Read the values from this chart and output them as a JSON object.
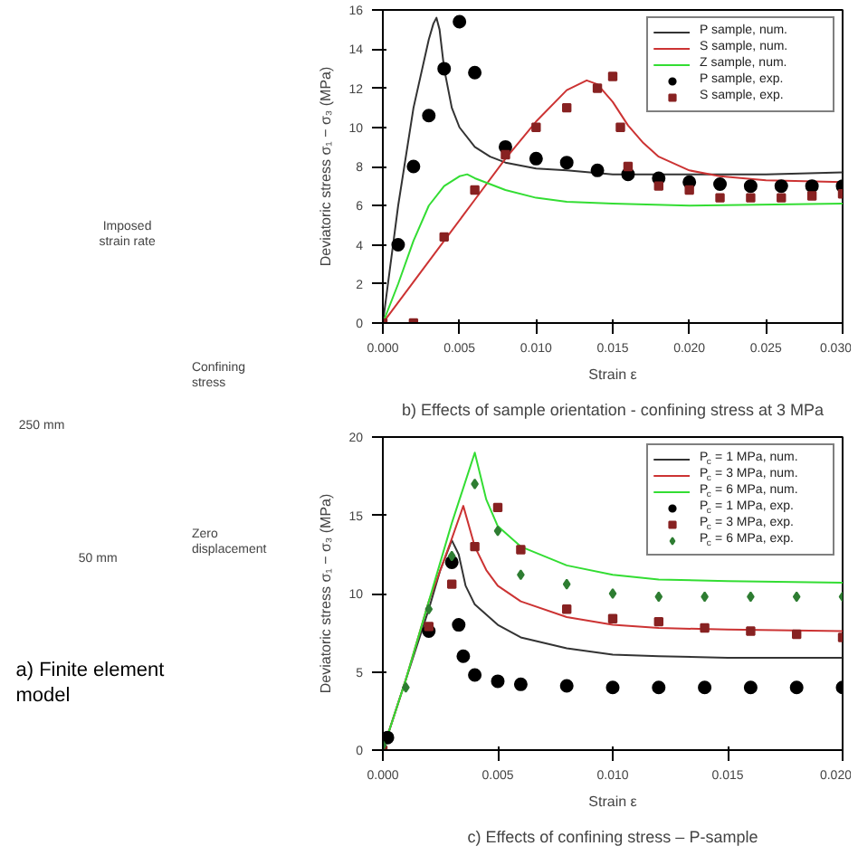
{
  "chart_data": [
    {
      "type": "other",
      "title": "a) Finite element model",
      "annotations": [
        "Imposed strain rate",
        "Confining stress",
        "250 mm",
        "50 mm",
        "Zero displacement"
      ]
    },
    {
      "type": "line",
      "title": "b) Effects of sample orientation - confining stress at 3 MPa",
      "xlabel": "Strain ε",
      "ylabel": "Deviatoric stress σ₁ − σ₃ (MPa)",
      "xlim": [
        0,
        0.03
      ],
      "ylim": [
        0,
        16
      ],
      "xticks": [
        {
          "value": 0,
          "label": "0.000"
        },
        {
          "value": 0.005,
          "label": "0.005"
        },
        {
          "value": 0.01,
          "label": "0.010"
        },
        {
          "value": 0.015,
          "label": "0.015"
        },
        {
          "value": 0.02,
          "label": "0.020"
        },
        {
          "value": 0.025,
          "label": "0.025"
        },
        {
          "value": 0.03,
          "label": "0.030"
        }
      ],
      "yticks": [
        0,
        2,
        4,
        6,
        8,
        10,
        12,
        14,
        16
      ],
      "grid": false,
      "legend": "top right",
      "series": [
        {
          "name": "P sample, num.",
          "type": "line",
          "color": "#333333",
          "x": [
            0,
            0.001,
            0.002,
            0.003,
            0.0033,
            0.0035,
            0.0037,
            0.004,
            0.0045,
            0.005,
            0.006,
            0.007,
            0.008,
            0.01,
            0.012,
            0.015,
            0.02,
            0.025,
            0.03
          ],
          "values": [
            0,
            6,
            11,
            14.5,
            15.3,
            15.6,
            15,
            13,
            11,
            10,
            9,
            8.5,
            8.2,
            7.9,
            7.8,
            7.6,
            7.6,
            7.6,
            7.7
          ]
        },
        {
          "name": "S sample, num.",
          "type": "line",
          "color": "#cc3333",
          "x": [
            0,
            0.004,
            0.006,
            0.008,
            0.01,
            0.012,
            0.0133,
            0.014,
            0.015,
            0.016,
            0.017,
            0.018,
            0.02,
            0.022,
            0.025,
            0.03
          ],
          "values": [
            0,
            4.2,
            6.3,
            8.4,
            10.3,
            11.9,
            12.4,
            12.2,
            11.3,
            10.1,
            9.2,
            8.5,
            7.8,
            7.5,
            7.3,
            7.2
          ]
        },
        {
          "name": "Z sample, num.",
          "type": "line",
          "color": "#33dd33",
          "x": [
            0,
            0.001,
            0.002,
            0.003,
            0.004,
            0.005,
            0.0055,
            0.006,
            0.007,
            0.008,
            0.01,
            0.012,
            0.015,
            0.02,
            0.03
          ],
          "values": [
            0,
            2,
            4.2,
            6,
            7,
            7.5,
            7.6,
            7.4,
            7.1,
            6.8,
            6.4,
            6.2,
            6.1,
            6,
            6.1
          ]
        },
        {
          "name": "P sample, exp.",
          "type": "scatter",
          "marker": "circle",
          "color": "#000000",
          "x": [
            0.001,
            0.002,
            0.003,
            0.004,
            0.005,
            0.006,
            0.008,
            0.01,
            0.012,
            0.014,
            0.016,
            0.018,
            0.02,
            0.022,
            0.024,
            0.026,
            0.028,
            0.03
          ],
          "values": [
            4,
            8,
            10.6,
            13,
            15.4,
            12.8,
            9,
            8.4,
            8.2,
            7.8,
            7.6,
            7.4,
            7.2,
            7.1,
            7,
            7,
            7,
            7
          ]
        },
        {
          "name": "S sample, exp.",
          "type": "scatter",
          "marker": "square",
          "color": "#882222",
          "x": [
            0,
            0.002,
            0.004,
            0.006,
            0.008,
            0.01,
            0.012,
            0.014,
            0.015,
            0.0155,
            0.016,
            0.018,
            0.02,
            0.022,
            0.024,
            0.026,
            0.028,
            0.03
          ],
          "values": [
            0,
            0,
            4.4,
            6.8,
            8.6,
            10,
            11,
            12,
            12.6,
            10,
            8,
            7,
            6.8,
            6.4,
            6.4,
            6.4,
            6.5,
            6.6
          ]
        }
      ]
    },
    {
      "type": "line",
      "title": "c) Effects of confining stress – P-sample",
      "xlabel": "Strain ε",
      "ylabel": "Deviatoric stress σ₁ − σ₃ (MPa)",
      "xlim": [
        0,
        0.02
      ],
      "ylim": [
        0,
        20
      ],
      "xticks": [
        {
          "value": 0,
          "label": "0.000"
        },
        {
          "value": 0.005,
          "label": "0.005"
        },
        {
          "value": 0.01,
          "label": "0.010"
        },
        {
          "value": 0.015,
          "label": "0.015"
        },
        {
          "value": 0.02,
          "label": "0.020"
        }
      ],
      "yticks": [
        0,
        5,
        10,
        15,
        20
      ],
      "grid": false,
      "legend": "top right",
      "series": [
        {
          "name": "P$_{c}$ = 1 MPa, num.",
          "type": "line",
          "color": "#333333",
          "x": [
            0,
            0.001,
            0.002,
            0.0025,
            0.003,
            0.0033,
            0.0036,
            0.004,
            0.005,
            0.006,
            0.008,
            0.01,
            0.012,
            0.015,
            0.02
          ],
          "values": [
            0,
            4.5,
            9,
            11.5,
            13.4,
            12.5,
            10.5,
            9.3,
            8,
            7.2,
            6.5,
            6.1,
            6,
            5.9,
            5.9
          ]
        },
        {
          "name": "P$_{c}$ = 3 MPa, num.",
          "type": "line",
          "color": "#cc3333",
          "x": [
            0,
            0.001,
            0.002,
            0.003,
            0.0035,
            0.004,
            0.0045,
            0.005,
            0.006,
            0.008,
            0.01,
            0.012,
            0.015,
            0.02
          ],
          "values": [
            0,
            4.5,
            9.5,
            13.5,
            15.6,
            13,
            11.5,
            10.5,
            9.5,
            8.5,
            8,
            7.8,
            7.7,
            7.6
          ]
        },
        {
          "name": "P$_{c}$ = 6 MPa, num.",
          "type": "line",
          "color": "#33dd33",
          "x": [
            0,
            0.001,
            0.002,
            0.003,
            0.004,
            0.0045,
            0.005,
            0.006,
            0.008,
            0.01,
            0.012,
            0.015,
            0.02
          ],
          "values": [
            0,
            4.5,
            9.5,
            14.5,
            19,
            16,
            14.3,
            13,
            11.8,
            11.2,
            10.9,
            10.8,
            10.7
          ]
        },
        {
          "name": "P$_{c}$ = 1 MPa, exp.",
          "type": "scatter",
          "marker": "circle",
          "color": "#000000",
          "x": [
            0.0002,
            0.002,
            0.003,
            0.0033,
            0.0035,
            0.004,
            0.005,
            0.006,
            0.008,
            0.01,
            0.012,
            0.014,
            0.016,
            0.018,
            0.02
          ],
          "values": [
            0.8,
            7.6,
            12,
            8,
            6,
            4.8,
            4.4,
            4.2,
            4.1,
            4,
            4,
            4,
            4,
            4,
            4
          ]
        },
        {
          "name": "P$_{c}$ = 3 MPa, exp.",
          "type": "scatter",
          "marker": "square",
          "color": "#882222",
          "x": [
            0,
            0.002,
            0.003,
            0.004,
            0.005,
            0.006,
            0.008,
            0.01,
            0.012,
            0.014,
            0.016,
            0.018,
            0.02
          ],
          "values": [
            0,
            7.9,
            10.6,
            13,
            15.5,
            12.8,
            9,
            8.4,
            8.2,
            7.8,
            7.6,
            7.4,
            7.2
          ]
        },
        {
          "name": "P$_{c}$ = 6 MPa, exp.",
          "type": "scatter",
          "marker": "diamond",
          "color": "#2e7d32",
          "x": [
            0,
            0.001,
            0.002,
            0.003,
            0.004,
            0.005,
            0.006,
            0.008,
            0.01,
            0.012,
            0.014,
            0.016,
            0.018,
            0.02
          ],
          "values": [
            0.3,
            4,
            9,
            12.4,
            17,
            14,
            11.2,
            10.6,
            10,
            9.8,
            9.8,
            9.8,
            9.8,
            9.8
          ]
        }
      ]
    }
  ]
}
